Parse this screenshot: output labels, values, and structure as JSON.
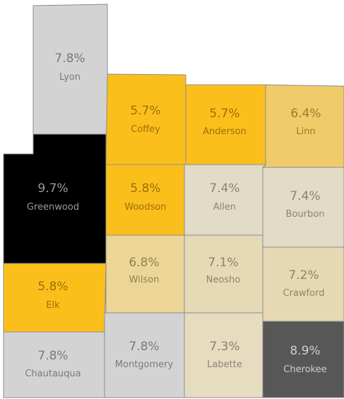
{
  "counties": [
    {
      "name": "Lyon",
      "label": "7.8%",
      "color": "#d3d3d3",
      "text_color": "#7a7a7a"
    },
    {
      "name": "Coffey",
      "label": "5.7%",
      "color": "#fbbf1c",
      "text_color": "#a06c08"
    },
    {
      "name": "Anderson",
      "label": "5.7%",
      "color": "#fbbf1c",
      "text_color": "#a06c08"
    },
    {
      "name": "Linn",
      "label": "6.4%",
      "color": "#f0cb6a",
      "text_color": "#a3772a"
    },
    {
      "name": "Greenwood",
      "label": "9.7%",
      "color": "#000000",
      "text_color": "#9a9a9a"
    },
    {
      "name": "Woodson",
      "label": "5.8%",
      "color": "#fbbf1c",
      "text_color": "#a06c08"
    },
    {
      "name": "Allen",
      "label": "7.4%",
      "color": "#e2dbc6",
      "text_color": "#8a8474"
    },
    {
      "name": "Bourbon",
      "label": "7.4%",
      "color": "#e2dbc6",
      "text_color": "#8a8474"
    },
    {
      "name": "Wilson",
      "label": "6.8%",
      "color": "#ebd597",
      "text_color": "#958049"
    },
    {
      "name": "Neosho",
      "label": "7.1%",
      "color": "#e5d9b6",
      "text_color": "#8f8469"
    },
    {
      "name": "Crawford",
      "label": "7.2%",
      "color": "#e5d8b3",
      "text_color": "#8f8469"
    },
    {
      "name": "Elk",
      "label": "5.8%",
      "color": "#fbbf1c",
      "text_color": "#a06c08"
    },
    {
      "name": "Chautauqua",
      "label": "7.8%",
      "color": "#d3d3d3",
      "text_color": "#7a7a7a"
    },
    {
      "name": "Montgomery",
      "label": "7.8%",
      "color": "#d3d3d3",
      "text_color": "#7a7a7a"
    },
    {
      "name": "Labette",
      "label": "7.3%",
      "color": "#e6dcc0",
      "text_color": "#8a8474"
    },
    {
      "name": "Cherokee",
      "label": "8.9%",
      "color": "#575757",
      "text_color": "#cfcfcf"
    }
  ]
}
